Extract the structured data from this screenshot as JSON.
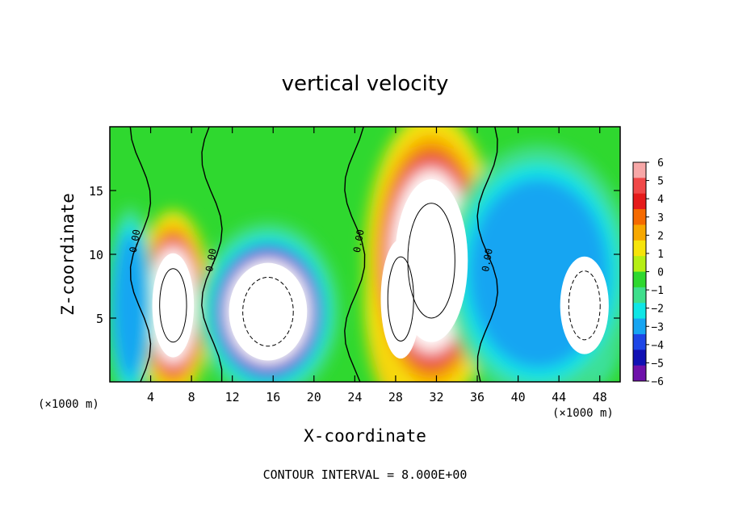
{
  "chart_data": {
    "type": "heatmap",
    "title": "vertical velocity",
    "xlabel": "X-coordinate",
    "ylabel": "Z-coordinate",
    "x_unit": "(×1000 m)",
    "z_unit": "(×1000 m)",
    "xlim": [
      0,
      50
    ],
    "ylim": [
      0,
      20
    ],
    "x_ticks": [
      4,
      8,
      12,
      16,
      20,
      24,
      28,
      32,
      36,
      40,
      44,
      48
    ],
    "y_ticks": [
      5,
      10,
      15
    ],
    "colorbar": {
      "ticks": [
        6,
        5,
        4,
        3,
        2,
        1,
        0,
        -1,
        -2,
        -3,
        -4,
        -5,
        -6
      ],
      "range": [
        -6,
        6
      ],
      "colors": [
        "#f7a7a7",
        "#f04848",
        "#e51a1a",
        "#f56a00",
        "#f7a800",
        "#f6e40a",
        "#b6ef14",
        "#2fd82f",
        "#3fdf8c",
        "#0fe6e6",
        "#17a5f2",
        "#1e46e6",
        "#1010b3",
        "#6e10aa"
      ]
    },
    "zero_contour_label": "0.00",
    "zero_contour_x": [
      3,
      10,
      24,
      37
    ],
    "cells": [
      {
        "x": 6.2,
        "z": 6.0,
        "rx": 2.4,
        "rz": 4.8,
        "value": 8
      },
      {
        "x": 15.5,
        "z": 5.5,
        "rx": 4.5,
        "rz": 4.5,
        "value": -8
      },
      {
        "x": 28.5,
        "z": 6.5,
        "rx": 2.3,
        "rz": 5.5,
        "value": 7
      },
      {
        "x": 31.5,
        "z": 9.5,
        "rx": 4.2,
        "rz": 7.5,
        "value": 9
      },
      {
        "x": 46.5,
        "z": 6.0,
        "rx": 2.8,
        "rz": 4.5,
        "value": -8
      },
      {
        "x": 42.0,
        "z": 8.5,
        "rx": 6.0,
        "rz": 6.5,
        "value": -3
      },
      {
        "x": 2.0,
        "z": 6.0,
        "rx": 1.5,
        "rz": 5.0,
        "value": -3
      }
    ],
    "contour_interval_label": "CONTOUR INTERVAL =  8.000E+00"
  }
}
